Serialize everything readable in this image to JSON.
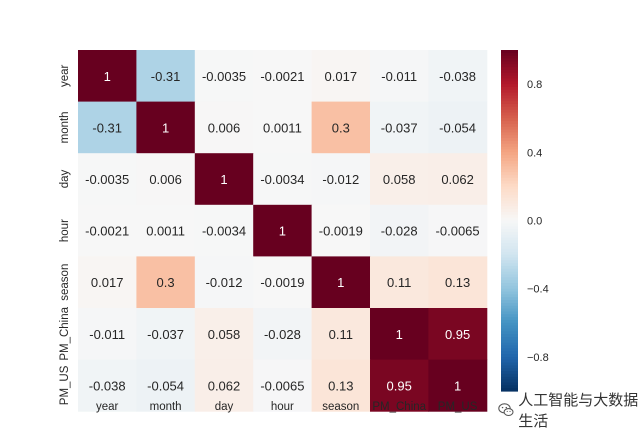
{
  "chart_data": {
    "type": "heatmap",
    "title": "",
    "rows": [
      "year",
      "month",
      "day",
      "hour",
      "season",
      "PM_China",
      "PM_US"
    ],
    "columns": [
      "year",
      "month",
      "day",
      "hour",
      "season",
      "PM_China",
      "PM_US"
    ],
    "y_tick_labels": [
      "year",
      "month",
      "day",
      "hour",
      "season",
      "PM_China",
      "PM_US"
    ],
    "x_tick_labels": [
      "year",
      "month",
      "day",
      "hour",
      "season",
      "PM_China",
      "PM_US"
    ],
    "cell_labels": [
      [
        "1",
        "-0.31",
        "-0.0035",
        "-0.0021",
        "0.017",
        "-0.011",
        "-0.038"
      ],
      [
        "-0.31",
        "1",
        "0.006",
        "0.0011",
        "0.3",
        "-0.037",
        "-0.054"
      ],
      [
        "-0.0035",
        "0.006",
        "1",
        "-0.0034",
        "-0.012",
        "0.058",
        "0.062"
      ],
      [
        "-0.0021",
        "0.0011",
        "-0.0034",
        "1",
        "-0.0019",
        "-0.028",
        "-0.0065"
      ],
      [
        "0.017",
        "0.3",
        "-0.012",
        "-0.0019",
        "1",
        "0.11",
        "0.13"
      ],
      [
        "-0.011",
        "-0.037",
        "0.058",
        "-0.028",
        "0.11",
        "1",
        "0.95"
      ],
      [
        "-0.038",
        "-0.054",
        "0.062",
        "-0.0065",
        "0.13",
        "0.95",
        "1"
      ]
    ],
    "values": [
      [
        1,
        -0.31,
        -0.0035,
        -0.0021,
        0.017,
        -0.011,
        -0.038
      ],
      [
        -0.31,
        1,
        0.006,
        0.0011,
        0.3,
        -0.037,
        -0.054
      ],
      [
        -0.0035,
        0.006,
        1,
        -0.0034,
        -0.012,
        0.058,
        0.062
      ],
      [
        -0.0021,
        0.0011,
        -0.0034,
        1,
        -0.0019,
        -0.028,
        -0.0065
      ],
      [
        0.017,
        0.3,
        -0.012,
        -0.0019,
        1,
        0.11,
        0.13
      ],
      [
        -0.011,
        -0.037,
        0.058,
        -0.028,
        0.11,
        1,
        0.95
      ],
      [
        -0.038,
        -0.054,
        0.062,
        -0.0065,
        0.13,
        0.95,
        1
      ]
    ],
    "colormap": "RdBu_r",
    "vmin": -1,
    "vmax": 1,
    "colorbar": {
      "ticks": [
        0.8,
        0.4,
        0.0,
        -0.4,
        -0.8
      ],
      "tick_labels": [
        "0.8",
        "0.4",
        "0.0",
        "−0.4",
        "−0.8"
      ]
    }
  },
  "watermark": {
    "text": "人工智能与大数据生活",
    "icon": "wechat-icon"
  }
}
